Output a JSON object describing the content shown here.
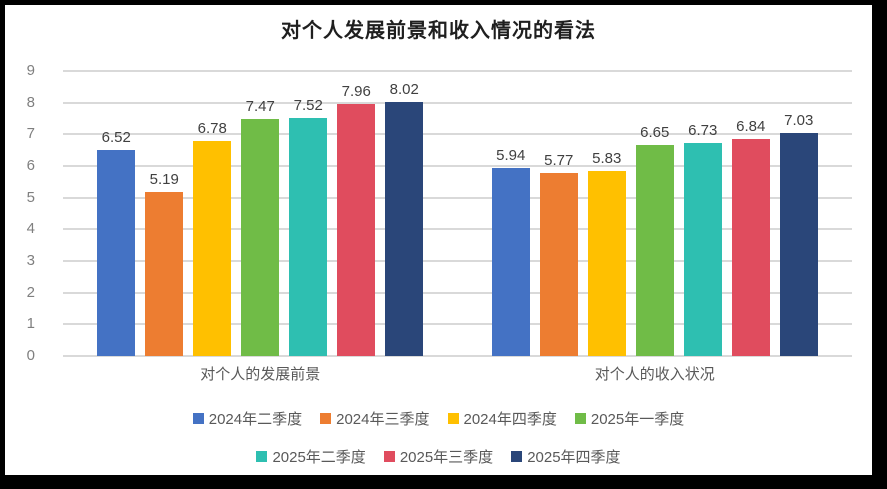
{
  "title": "对个人发展前景和收入情况的看法",
  "chart_data": {
    "type": "bar",
    "title": "对个人发展前景和收入情况的看法",
    "categories": [
      "对个人的发展前景",
      "对个人的收入状况"
    ],
    "series": [
      {
        "name": "2024年二季度",
        "color": "#4472C4",
        "values": [
          6.52,
          5.94
        ]
      },
      {
        "name": "2024年三季度",
        "color": "#ED7D31",
        "values": [
          5.19,
          5.77
        ]
      },
      {
        "name": "2024年四季度",
        "color": "#FFC000",
        "values": [
          6.78,
          5.83
        ]
      },
      {
        "name": "2025年一季度",
        "color": "#70BC47",
        "values": [
          7.47,
          6.65
        ]
      },
      {
        "name": "2025年二季度",
        "color": "#2EBFB1",
        "values": [
          7.52,
          6.73
        ]
      },
      {
        "name": "2025年三季度",
        "color": "#E04C5E",
        "values": [
          7.96,
          6.84
        ]
      },
      {
        "name": "2025年四季度",
        "color": "#2A4679",
        "values": [
          8.02,
          7.03
        ]
      }
    ],
    "ylim": [
      0,
      9
    ],
    "yticks": [
      0,
      1,
      2,
      3,
      4,
      5,
      6,
      7,
      8,
      9
    ],
    "grid": true,
    "value_labels_decimals": 2,
    "legend_position": "bottom",
    "legend_rows": [
      [
        "2024年二季度",
        "2024年三季度",
        "2024年四季度",
        "2025年一季度"
      ],
      [
        "2025年二季度",
        "2025年三季度",
        "2025年四季度"
      ]
    ],
    "colors": {
      "gridline": "#d9d9d9",
      "tick_label": "#7f7f7f",
      "value_label": "#404040",
      "category_label": "#595959",
      "legend_label": "#595959",
      "frame_border": "#000000"
    }
  }
}
